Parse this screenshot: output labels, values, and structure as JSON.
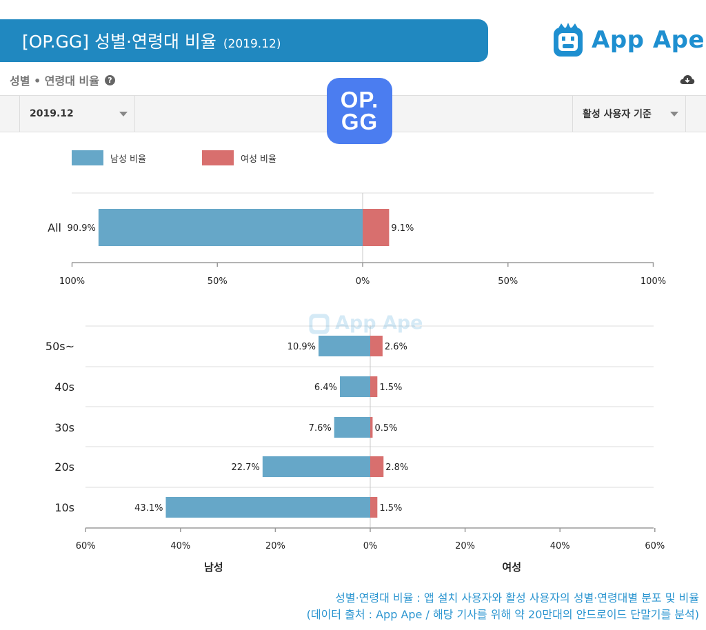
{
  "header": {
    "title": "[OP.GG] 성별·연령대 비율",
    "date": "(2019.12)",
    "brand": "App Ape"
  },
  "section": {
    "title": "성별 • 연령대 비율",
    "help_icon": "question-circle-icon",
    "download_icon": "cloud-download-icon"
  },
  "filters": {
    "date_value": "2019.12",
    "basis_value": "활성 사용자 기준"
  },
  "app_logo": {
    "line1": "OP.",
    "line2": "GG",
    "color": "#4b7df0"
  },
  "colors": {
    "male": "#66a7c8",
    "female": "#d86f6e",
    "banner": "#2088c0"
  },
  "chart_data": [
    {
      "type": "bar",
      "orientation": "horizontal-diverging",
      "categories": [
        "All"
      ],
      "series": [
        {
          "name": "남성 비율",
          "values": [
            90.9
          ]
        },
        {
          "name": "여성 비율",
          "values": [
            9.1
          ]
        }
      ],
      "xlim": [
        -100,
        100
      ],
      "xticks": [
        -100,
        -50,
        0,
        50,
        100
      ],
      "xtick_labels": [
        "100%",
        "50%",
        "0%",
        "50%",
        "100%"
      ],
      "legend": [
        "남성 비율",
        "여성 비율"
      ],
      "legend_position": "top-left"
    },
    {
      "type": "bar",
      "orientation": "horizontal-diverging",
      "categories": [
        "50s~",
        "40s",
        "30s",
        "20s",
        "10s"
      ],
      "series": [
        {
          "name": "남성",
          "values": [
            10.9,
            6.4,
            7.6,
            22.7,
            43.1
          ]
        },
        {
          "name": "여성",
          "values": [
            2.6,
            1.5,
            0.5,
            2.8,
            1.5
          ]
        }
      ],
      "xlim": [
        -60,
        60
      ],
      "xticks": [
        -60,
        -40,
        -20,
        0,
        20,
        40,
        60
      ],
      "xtick_labels": [
        "60%",
        "40%",
        "20%",
        "0%",
        "20%",
        "40%",
        "60%"
      ],
      "xlabel_left": "남성",
      "xlabel_right": "여성"
    }
  ],
  "footer": {
    "line1": "성별·연령대 비율 : 앱 설치 사용자와 활성 사용자의 성별·연령대별 분포 및 비율",
    "line2": "(데이터 출처 : App Ape / 해당 기사를 위해 약 20만대의 안드로이드 단말기를 분석)"
  }
}
